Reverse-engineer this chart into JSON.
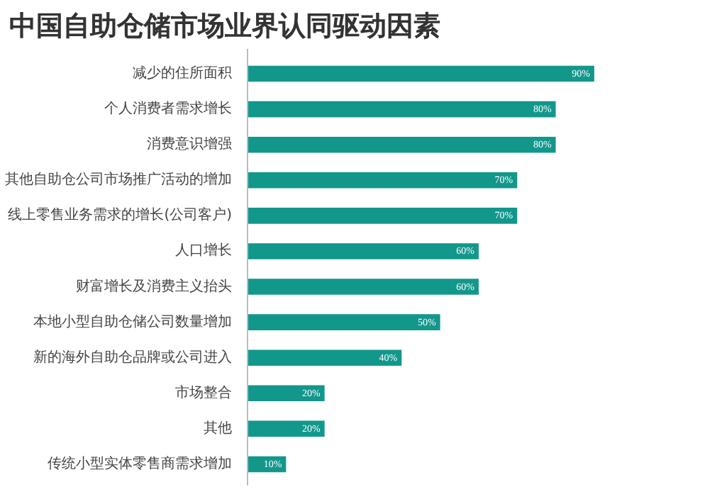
{
  "chart_data": {
    "type": "bar",
    "orientation": "horizontal",
    "title": "中国自助仓储市场业界认同驱动因素",
    "categories": [
      "减少的住所面积",
      "个人消费者需求增长",
      "消费意识增强",
      "其他自助仓公司市场推广活动的增加",
      "线上零售业务需求的增长(公司客户)",
      "人口增长",
      "财富增长及消费主义抬头",
      "本地小型自助仓储公司数量增加",
      "新的海外自助仓品牌或公司进入",
      "市场整合",
      "其他",
      "传统小型实体零售商需求增加"
    ],
    "values": [
      90,
      80,
      80,
      70,
      70,
      60,
      60,
      50,
      40,
      20,
      20,
      10
    ],
    "value_labels": [
      "90%",
      "80%",
      "80%",
      "70%",
      "70%",
      "60%",
      "60%",
      "50%",
      "40%",
      "20%",
      "20%",
      "10%"
    ],
    "color": "#12978b",
    "grid": false,
    "tick_labels": "y"
  }
}
